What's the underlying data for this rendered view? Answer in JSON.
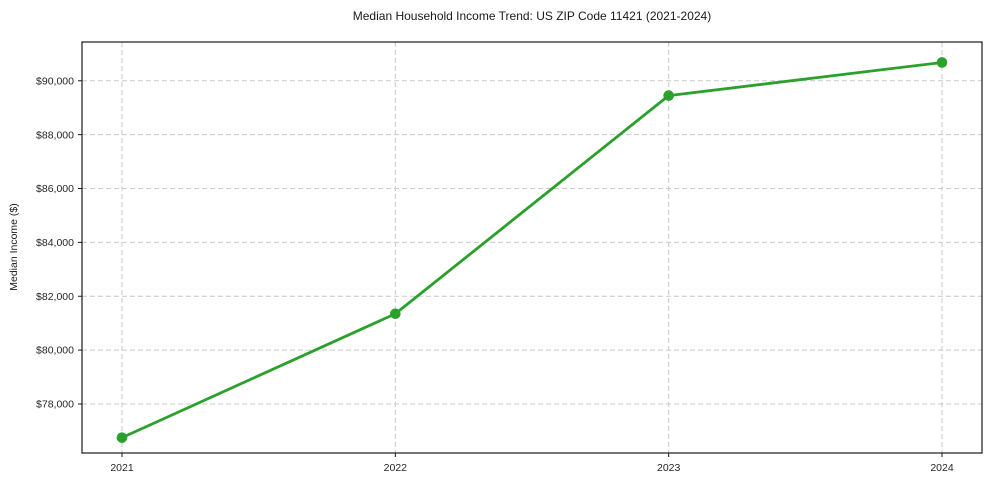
{
  "chart_data": {
    "type": "line",
    "title": "Median Household Income Trend: US ZIP Code 11421 (2021-2024)",
    "xlabel": "",
    "ylabel": "Median Income ($)",
    "x": [
      "2021",
      "2022",
      "2023",
      "2024"
    ],
    "series": [
      {
        "name": "Median Household Income",
        "values": [
          76750,
          81350,
          89450,
          90680
        ],
        "color": "#2ca02c"
      }
    ],
    "yticks": [
      78000,
      80000,
      82000,
      84000,
      86000,
      88000,
      90000
    ],
    "ytick_format": "$#,##0",
    "ylim": [
      76180,
      91440
    ],
    "grid": true,
    "grid_style": "dashed",
    "legend": "none",
    "colors": {
      "line": "#2ca02c",
      "marker": "#2ca02c",
      "grid": "#c9c9c9",
      "axis": "#1a1a1a",
      "text": "#262626",
      "background": "#ffffff"
    }
  }
}
